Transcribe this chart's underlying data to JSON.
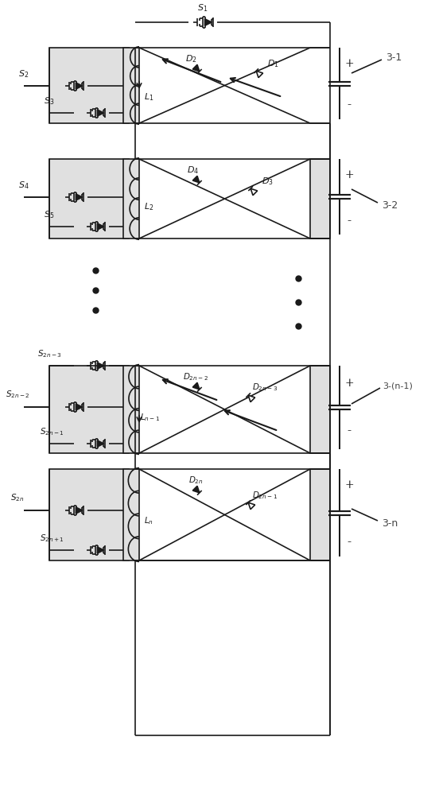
{
  "fig_w": 5.47,
  "fig_h": 10.0,
  "dpi": 100,
  "lc": "#1a1a1a",
  "lw": 1.2,
  "bg": "#ffffff",
  "gray_fill": "#e0e0e0",
  "xlim": [
    0,
    547
  ],
  "ylim": [
    0,
    1000
  ]
}
